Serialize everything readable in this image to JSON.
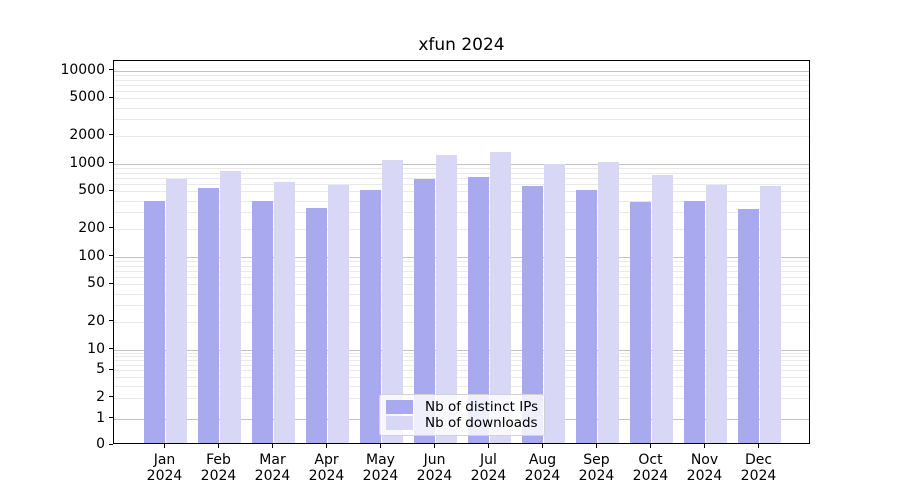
{
  "chart_data": {
    "type": "bar",
    "title": "xfun 2024",
    "categories": [
      "Jan",
      "Feb",
      "Mar",
      "Apr",
      "May",
      "Jun",
      "Jul",
      "Aug",
      "Sep",
      "Oct",
      "Nov",
      "Dec"
    ],
    "category_year": "2024",
    "series": [
      {
        "name": "Nb of distinct IPs",
        "color": "#a9a9f0",
        "values": [
          380,
          515,
          380,
          315,
          490,
          650,
          690,
          545,
          500,
          365,
          380,
          305
        ]
      },
      {
        "name": "Nb of downloads",
        "color": "#d8d8f6",
        "values": [
          655,
          800,
          605,
          560,
          1030,
          1175,
          1275,
          940,
          985,
          720,
          560,
          540
        ]
      }
    ],
    "xlabel": "",
    "ylabel": "",
    "y_axis": {
      "scale": "symlog",
      "tick_labels": [
        "10000",
        "5000",
        "2000",
        "1000",
        "500",
        "200",
        "100",
        "50",
        "20",
        "10",
        "5",
        "2",
        "1",
        "0"
      ],
      "tick_values": [
        10000,
        5000,
        2000,
        1000,
        500,
        200,
        100,
        50,
        20,
        10,
        5,
        2,
        1,
        0
      ],
      "ylim": [
        0,
        12500
      ]
    },
    "grid": {
      "visible": true,
      "major_values": [
        1,
        10,
        100,
        1000,
        10000
      ],
      "minor_multipliers": [
        2,
        3,
        4,
        5,
        6,
        7,
        8,
        9
      ],
      "minor_decades": [
        1,
        10,
        100,
        1000
      ],
      "major_color": "#c3c3c3",
      "minor_color": "#e9e9e9"
    },
    "legend": {
      "position": "lower center"
    }
  }
}
